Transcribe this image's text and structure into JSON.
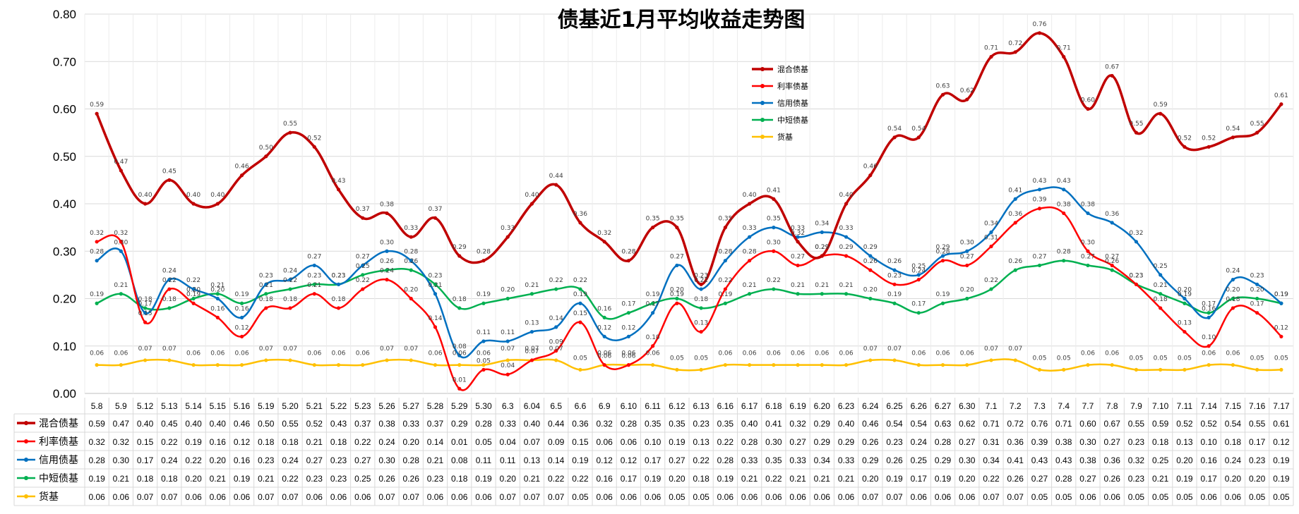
{
  "chart_data": {
    "type": "line",
    "title": "债基近1月平均收益走势图",
    "xlabel": "",
    "ylabel": "",
    "ylim": [
      0,
      0.8
    ],
    "yticks": [
      "0.00",
      "0.10",
      "0.20",
      "0.30",
      "0.40",
      "0.50",
      "0.60",
      "0.70",
      "0.80"
    ],
    "grid": true,
    "legend_position": "top-center",
    "categories": [
      "5.8",
      "5.9",
      "5.12",
      "5.13",
      "5.14",
      "5.15",
      "5.16",
      "5.19",
      "5.20",
      "5.21",
      "5.22",
      "5.23",
      "5.26",
      "5.27",
      "5.28",
      "5.29",
      "5.30",
      "6.3",
      "6.04",
      "6.5",
      "6.6",
      "6.9",
      "6.10",
      "6.11",
      "6.12",
      "6.13",
      "6.16",
      "6.17",
      "6.18",
      "6.19",
      "6.20",
      "6.23",
      "6.24",
      "6.25",
      "6.26",
      "6.27",
      "6.30",
      "7.1",
      "7.2",
      "7.3",
      "7.4",
      "7.7",
      "7.8",
      "7.9",
      "7.10",
      "7.11",
      "7.14",
      "7.15",
      "7.16",
      "7.17"
    ],
    "series": [
      {
        "name": "混合债基",
        "color": "#C00000",
        "values": [
          0.59,
          0.47,
          0.4,
          0.45,
          0.4,
          0.4,
          0.46,
          0.5,
          0.55,
          0.52,
          0.43,
          0.37,
          0.38,
          0.33,
          0.37,
          0.29,
          0.28,
          0.33,
          0.4,
          0.44,
          0.36,
          0.32,
          0.28,
          0.35,
          0.35,
          0.23,
          0.35,
          0.4,
          0.41,
          0.32,
          0.29,
          0.4,
          0.46,
          0.54,
          0.54,
          0.63,
          0.62,
          0.71,
          0.72,
          0.76,
          0.71,
          0.6,
          0.67,
          0.55,
          0.59,
          0.52,
          0.52,
          0.54,
          0.55,
          0.61
        ]
      },
      {
        "name": "利率债基",
        "color": "#FF0000",
        "values": [
          0.32,
          0.32,
          0.15,
          0.22,
          0.19,
          0.16,
          0.12,
          0.18,
          0.18,
          0.21,
          0.18,
          0.22,
          0.24,
          0.2,
          0.14,
          0.01,
          0.05,
          0.04,
          0.07,
          0.09,
          0.15,
          0.06,
          0.06,
          0.1,
          0.19,
          0.13,
          0.22,
          0.28,
          0.3,
          0.27,
          0.29,
          0.29,
          0.26,
          0.23,
          0.24,
          0.28,
          0.27,
          0.31,
          0.36,
          0.39,
          0.38,
          0.3,
          0.27,
          0.23,
          0.18,
          0.13,
          0.1,
          0.18,
          0.17,
          0.12
        ]
      },
      {
        "name": "信用债基",
        "color": "#0070C0",
        "values": [
          0.28,
          0.3,
          0.17,
          0.24,
          0.22,
          0.2,
          0.16,
          0.23,
          0.24,
          0.27,
          0.23,
          0.27,
          0.3,
          0.28,
          0.21,
          0.08,
          0.11,
          0.11,
          0.13,
          0.14,
          0.19,
          0.12,
          0.12,
          0.17,
          0.27,
          0.22,
          0.28,
          0.33,
          0.35,
          0.33,
          0.34,
          0.33,
          0.29,
          0.26,
          0.25,
          0.29,
          0.3,
          0.34,
          0.41,
          0.43,
          0.43,
          0.38,
          0.36,
          0.32,
          0.25,
          0.2,
          0.16,
          0.24,
          0.23,
          0.19
        ]
      },
      {
        "name": "中短债基",
        "color": "#00B050",
        "values": [
          0.19,
          0.21,
          0.18,
          0.18,
          0.2,
          0.21,
          0.19,
          0.21,
          0.22,
          0.23,
          0.23,
          0.25,
          0.26,
          0.26,
          0.23,
          0.18,
          0.19,
          0.2,
          0.21,
          0.22,
          0.22,
          0.16,
          0.17,
          0.19,
          0.2,
          0.18,
          0.19,
          0.21,
          0.22,
          0.21,
          0.21,
          0.21,
          0.2,
          0.19,
          0.17,
          0.19,
          0.2,
          0.22,
          0.26,
          0.27,
          0.28,
          0.27,
          0.26,
          0.23,
          0.21,
          0.19,
          0.17,
          0.2,
          0.2,
          0.19
        ]
      },
      {
        "name": "货基",
        "color": "#FFC000",
        "values": [
          0.06,
          0.06,
          0.07,
          0.07,
          0.06,
          0.06,
          0.06,
          0.07,
          0.07,
          0.06,
          0.06,
          0.06,
          0.07,
          0.07,
          0.06,
          0.06,
          0.06,
          0.07,
          0.07,
          0.07,
          0.05,
          0.06,
          0.06,
          0.06,
          0.05,
          0.05,
          0.06,
          0.06,
          0.06,
          0.06,
          0.06,
          0.06,
          0.07,
          0.07,
          0.06,
          0.06,
          0.06,
          0.07,
          0.07,
          0.05,
          0.05,
          0.06,
          0.06,
          0.05,
          0.05,
          0.05,
          0.06,
          0.06,
          0.05,
          0.05
        ]
      }
    ]
  }
}
